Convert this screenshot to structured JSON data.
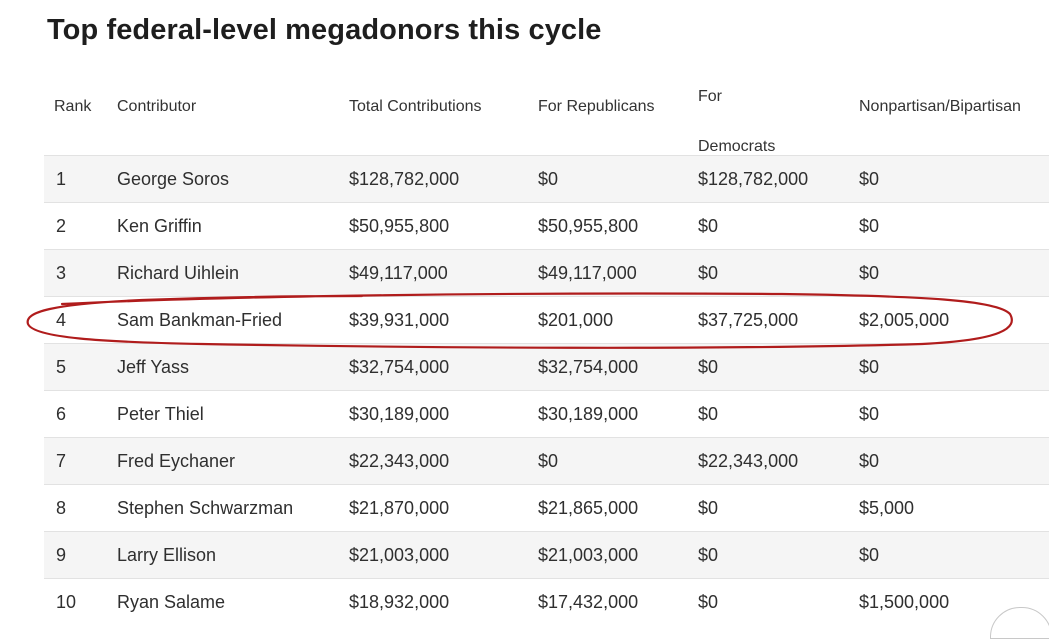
{
  "title": "Top federal-level megadonors this cycle",
  "headers": {
    "rank": "Rank",
    "contributor": "Contributor",
    "total": "Total Contributions",
    "republicans": "For Republicans",
    "democrats": "For Democrats",
    "nonpartisan": "Nonpartisan/Bipartisan"
  },
  "rows": [
    {
      "rank": "1",
      "contributor": "George Soros",
      "total": "$128,782,000",
      "republicans": "$0",
      "democrats": "$128,782,000",
      "nonpartisan": "$0"
    },
    {
      "rank": "2",
      "contributor": "Ken Griffin",
      "total": "$50,955,800",
      "republicans": "$50,955,800",
      "democrats": "$0",
      "nonpartisan": "$0"
    },
    {
      "rank": "3",
      "contributor": "Richard Uihlein",
      "total": "$49,117,000",
      "republicans": "$49,117,000",
      "democrats": "$0",
      "nonpartisan": "$0"
    },
    {
      "rank": "4",
      "contributor": "Sam Bankman-Fried",
      "total": "$39,931,000",
      "republicans": "$201,000",
      "democrats": "$37,725,000",
      "nonpartisan": "$2,005,000"
    },
    {
      "rank": "5",
      "contributor": "Jeff Yass",
      "total": "$32,754,000",
      "republicans": "$32,754,000",
      "democrats": "$0",
      "nonpartisan": "$0"
    },
    {
      "rank": "6",
      "contributor": "Peter Thiel",
      "total": "$30,189,000",
      "republicans": "$30,189,000",
      "democrats": "$0",
      "nonpartisan": "$0"
    },
    {
      "rank": "7",
      "contributor": "Fred Eychaner",
      "total": "$22,343,000",
      "republicans": "$0",
      "democrats": "$22,343,000",
      "nonpartisan": "$0"
    },
    {
      "rank": "8",
      "contributor": "Stephen Schwarzman",
      "total": "$21,870,000",
      "republicans": "$21,865,000",
      "democrats": "$0",
      "nonpartisan": "$5,000"
    },
    {
      "rank": "9",
      "contributor": "Larry Ellison",
      "total": "$21,003,000",
      "republicans": "$21,003,000",
      "democrats": "$0",
      "nonpartisan": "$0"
    },
    {
      "rank": "10",
      "contributor": "Ryan Salame",
      "total": "$18,932,000",
      "republicans": "$17,432,000",
      "democrats": "$0",
      "nonpartisan": "$1,500,000"
    }
  ],
  "annotation": {
    "color": "#b01c1c"
  }
}
